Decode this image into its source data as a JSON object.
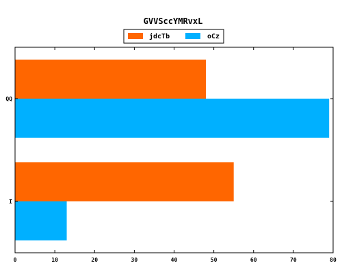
{
  "chart_data": {
    "type": "bar",
    "orientation": "horizontal",
    "title": "GVVSccYMRvxL",
    "categories": [
      "QQ",
      "I"
    ],
    "series": [
      {
        "name": "jdcTb",
        "color": "#ff6600",
        "values": [
          48,
          55
        ]
      },
      {
        "name": "oCz",
        "color": "#00b0ff",
        "values": [
          79,
          13
        ]
      }
    ],
    "xlim": [
      0,
      80
    ],
    "xticks": [
      0,
      10,
      20,
      30,
      40,
      50,
      60,
      70,
      80
    ],
    "xlabel": "",
    "ylabel": "",
    "grid": false,
    "legend": "top-center"
  }
}
